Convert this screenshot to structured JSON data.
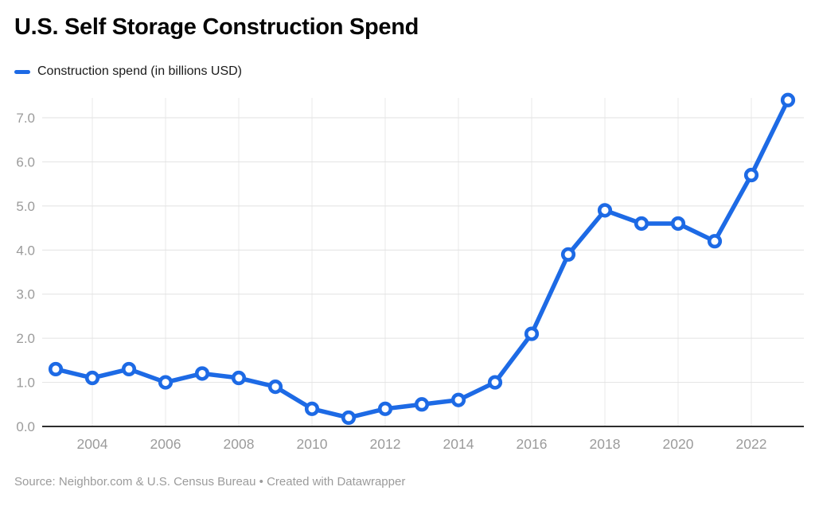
{
  "header": {
    "title": "U.S. Self Storage Construction Spend"
  },
  "legend": {
    "label": "Construction spend (in billions USD)",
    "color": "#1d6ae5"
  },
  "footer": {
    "text": "Source: Neighbor.com & U.S. Census Bureau • Created with Datawrapper"
  },
  "chart_data": {
    "type": "line",
    "title": "U.S. Self Storage Construction Spend",
    "series": [
      {
        "name": "Construction spend (in billions USD)",
        "values": [
          1.3,
          1.1,
          1.3,
          1.0,
          1.2,
          1.1,
          0.9,
          0.4,
          0.2,
          0.4,
          0.5,
          0.6,
          1.0,
          2.1,
          3.9,
          4.9,
          4.6,
          4.6,
          4.2,
          5.7,
          7.4
        ]
      }
    ],
    "x": [
      2003,
      2004,
      2005,
      2006,
      2007,
      2008,
      2009,
      2010,
      2011,
      2012,
      2013,
      2014,
      2015,
      2016,
      2017,
      2018,
      2019,
      2020,
      2021,
      2022,
      2023
    ],
    "x_ticks": [
      2004,
      2006,
      2008,
      2010,
      2012,
      2014,
      2016,
      2018,
      2020,
      2022
    ],
    "x_tick_labels": [
      "2004",
      "2006",
      "2008",
      "2010",
      "2012",
      "2014",
      "2016",
      "2018",
      "2020",
      "2022"
    ],
    "y_ticks": [
      0,
      1,
      2,
      3,
      4,
      5,
      6,
      7
    ],
    "y_tick_labels": [
      "0.0",
      "1.0",
      "2.0",
      "3.0",
      "4.0",
      "5.0",
      "6.0",
      "7.0"
    ],
    "ylim": [
      0,
      7.45
    ],
    "xlabel": "",
    "ylabel": "",
    "grid": true,
    "legend_position": "top-left",
    "line_color": "#1d6ae5",
    "marker": "circle-open",
    "marker_fill": "#ffffff",
    "axis_color": "#2e2e2e",
    "tick_label_color": "#9b9b9b"
  }
}
